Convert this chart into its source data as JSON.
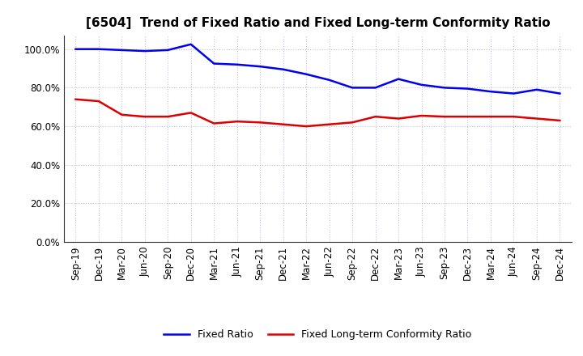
{
  "title": "[6504]  Trend of Fixed Ratio and Fixed Long-term Conformity Ratio",
  "x_labels": [
    "Sep-19",
    "Dec-19",
    "Mar-20",
    "Jun-20",
    "Sep-20",
    "Dec-20",
    "Mar-21",
    "Jun-21",
    "Sep-21",
    "Dec-21",
    "Mar-22",
    "Jun-22",
    "Sep-22",
    "Dec-22",
    "Mar-23",
    "Jun-23",
    "Sep-23",
    "Dec-23",
    "Mar-24",
    "Jun-24",
    "Sep-24",
    "Dec-24"
  ],
  "fixed_ratio": [
    100.0,
    100.0,
    99.5,
    99.0,
    99.5,
    102.5,
    92.5,
    92.0,
    91.0,
    89.5,
    87.0,
    84.0,
    80.0,
    80.0,
    84.5,
    81.5,
    80.0,
    79.5,
    78.0,
    77.0,
    79.0,
    77.0
  ],
  "fixed_lt_ratio": [
    74.0,
    73.0,
    66.0,
    65.0,
    65.0,
    67.0,
    61.5,
    62.5,
    62.0,
    61.0,
    60.0,
    61.0,
    62.0,
    65.0,
    64.0,
    65.5,
    65.0,
    65.0,
    65.0,
    65.0,
    64.0,
    63.0
  ],
  "fixed_ratio_color": "#0000EE",
  "fixed_lt_ratio_color": "#DD0000",
  "ylim": [
    0,
    107
  ],
  "yticks": [
    0,
    20,
    40,
    60,
    80,
    100
  ],
  "ytick_labels": [
    "0.0%",
    "20.0%",
    "40.0%",
    "60.0%",
    "80.0%",
    "100.0%"
  ],
  "bg_color": "#FFFFFF",
  "plot_bg_color": "#FFFFFF",
  "grid_color": "#AAAACC",
  "grid_alpha": 0.7,
  "legend_fixed_ratio": "Fixed Ratio",
  "legend_fixed_lt_ratio": "Fixed Long-term Conformity Ratio",
  "line_width": 1.8,
  "title_fontsize": 11,
  "tick_fontsize": 8.5,
  "legend_fontsize": 9
}
